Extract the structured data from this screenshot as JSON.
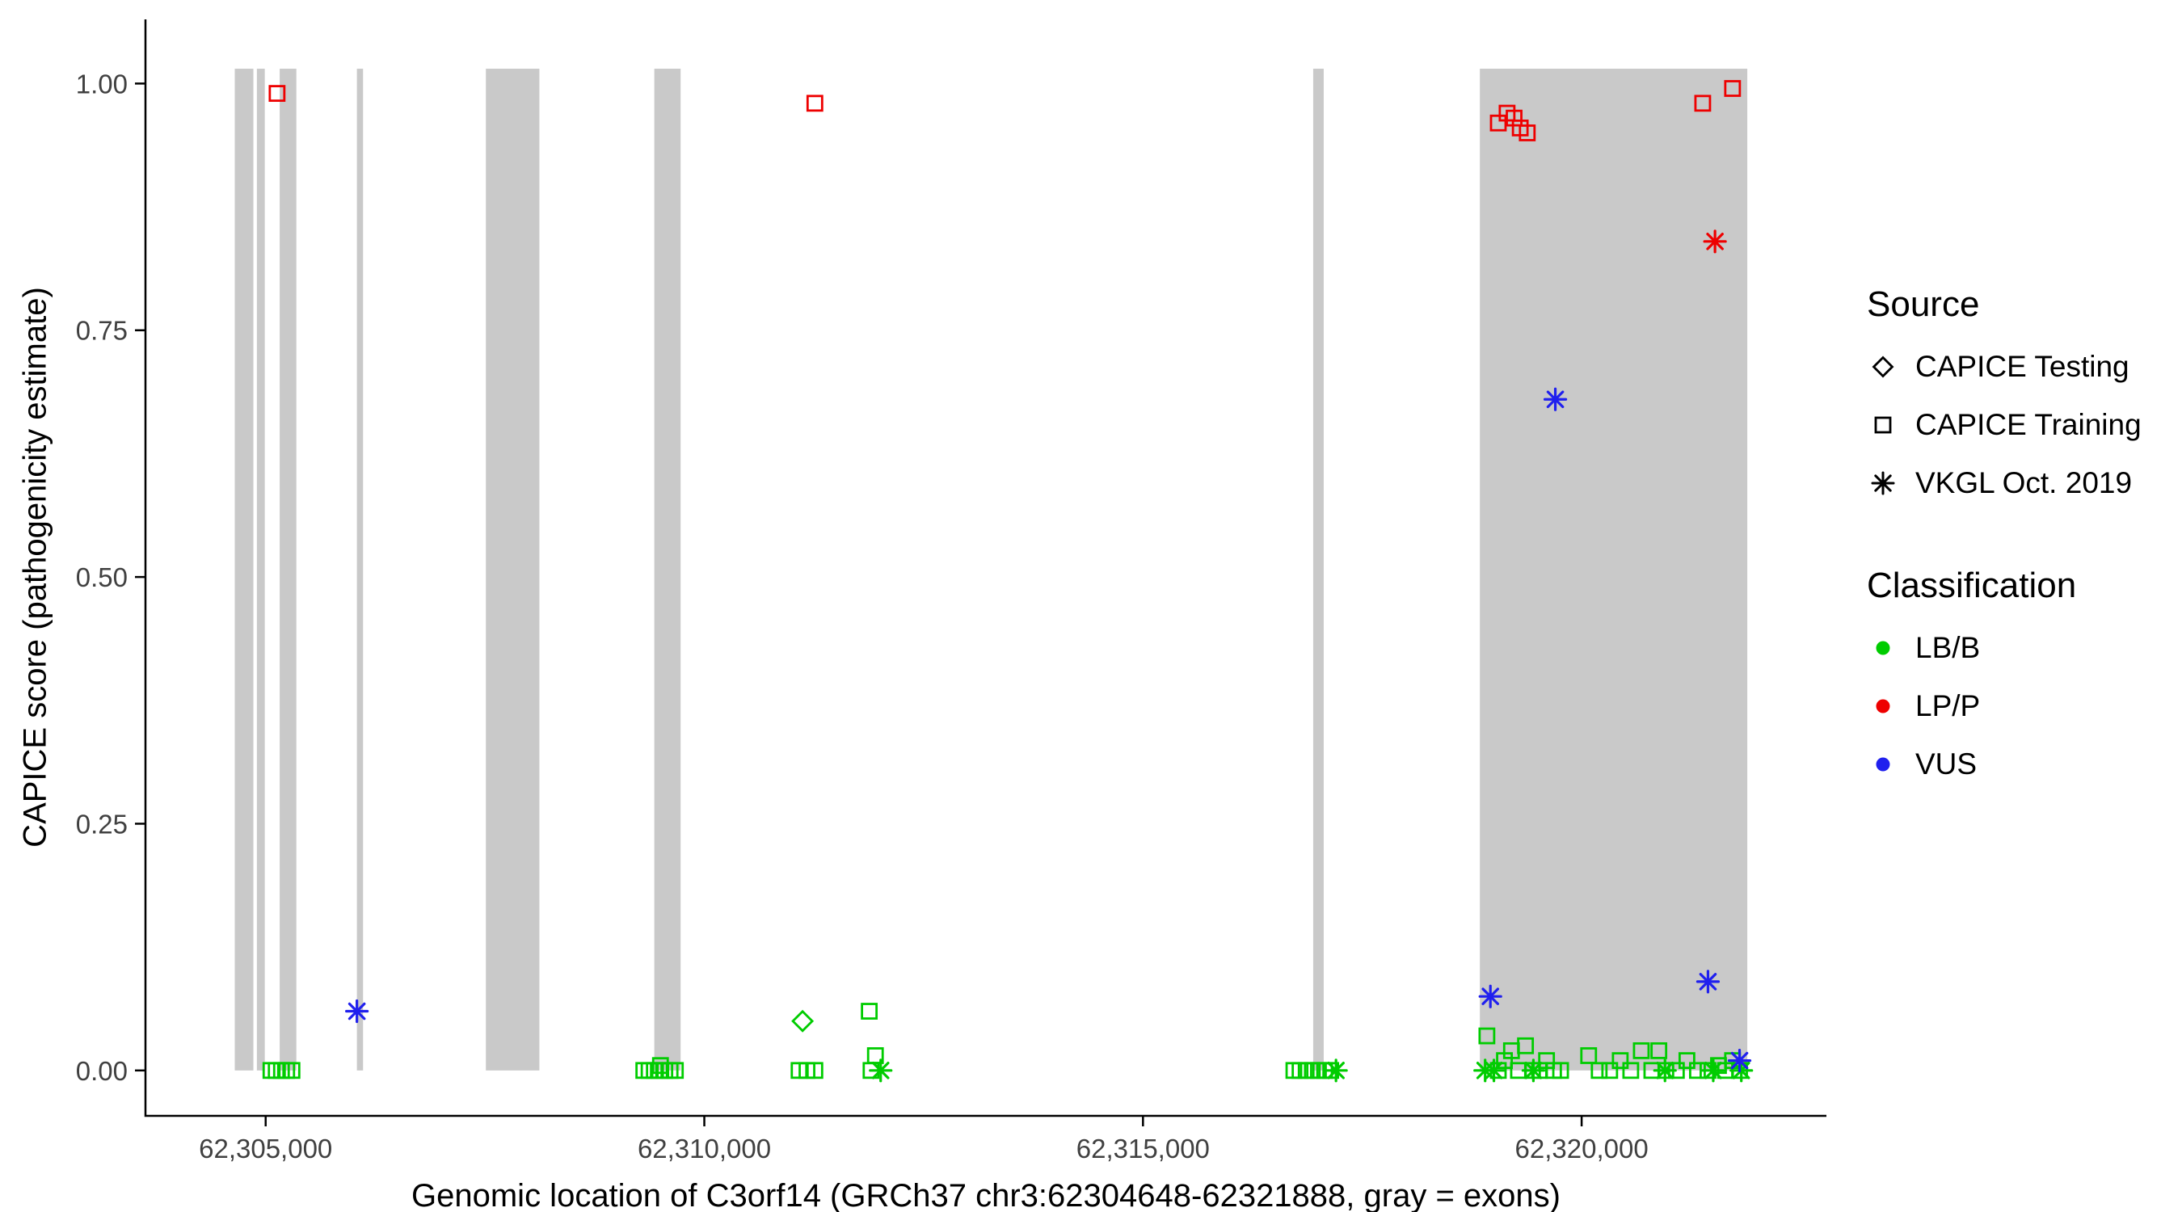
{
  "chart_data": {
    "type": "scatter",
    "title": "",
    "xlabel": "Genomic location of C3orf14 (GRCh37 chr3:62304648-62321888, gray = exons)",
    "ylabel": "CAPICE score (pathogenicity estimate)",
    "xlim": [
      62303630,
      62322790
    ],
    "ylim": [
      -0.046,
      1.065
    ],
    "x_tick_values": [
      62305000,
      62310000,
      62315000,
      62320000
    ],
    "x_tick_labels": [
      "62,305,000",
      "62,310,000",
      "62,315,000",
      "62,320,000"
    ],
    "y_tick_values": [
      0.0,
      0.25,
      0.5,
      0.75,
      1.0
    ],
    "y_tick_labels": [
      "0.00",
      "0.25",
      "0.50",
      "0.75",
      "1.00"
    ],
    "grid": "off",
    "legend_position": "right",
    "exon_color": "#c9c9c9",
    "exon_y_range": [
      0.0,
      1.015
    ],
    "exons": [
      [
        62304648,
        62304860
      ],
      [
        62304900,
        62304990
      ],
      [
        62305160,
        62305350
      ],
      [
        62306040,
        62306110
      ],
      [
        62307510,
        62308120
      ],
      [
        62309430,
        62309730
      ],
      [
        62316940,
        62317060
      ],
      [
        62318840,
        62321888
      ]
    ],
    "colors": {
      "LB/B": "#00CC00",
      "LP/P": "#EE0000",
      "VUS": "#2020EE"
    },
    "shapes": {
      "CAPICE Testing": "diamond",
      "CAPICE Training": "square",
      "VKGL Oct. 2019": "asterisk"
    },
    "series": [
      {
        "classification": "LB/B",
        "source": "CAPICE Testing",
        "points": [
          [
            62311120,
            0.05
          ]
        ]
      },
      {
        "classification": "LB/B",
        "source": "CAPICE Training",
        "points": [
          [
            62305060,
            0.0
          ],
          [
            62305120,
            0.0
          ],
          [
            62305180,
            0.0
          ],
          [
            62305240,
            0.0
          ],
          [
            62305300,
            0.0
          ],
          [
            62309310,
            0.0
          ],
          [
            62309370,
            0.0
          ],
          [
            62309430,
            0.0
          ],
          [
            62309490,
            0.0
          ],
          [
            62309550,
            0.0
          ],
          [
            62309610,
            0.0
          ],
          [
            62309670,
            0.0
          ],
          [
            62309500,
            0.005
          ],
          [
            62311080,
            0.0
          ],
          [
            62311170,
            0.0
          ],
          [
            62311260,
            0.0
          ],
          [
            62311880,
            0.06
          ],
          [
            62311950,
            0.015
          ],
          [
            62311900,
            0.0
          ],
          [
            62316720,
            0.0
          ],
          [
            62316790,
            0.0
          ],
          [
            62316860,
            0.0
          ],
          [
            62316930,
            0.0
          ],
          [
            62317000,
            0.0
          ],
          [
            62317070,
            0.0
          ],
          [
            62317140,
            0.0
          ],
          [
            62318920,
            0.035
          ],
          [
            62319050,
            0.0
          ],
          [
            62319120,
            0.01
          ],
          [
            62319200,
            0.02
          ],
          [
            62319280,
            0.0
          ],
          [
            62319360,
            0.025
          ],
          [
            62319440,
            0.0
          ],
          [
            62319520,
            0.0
          ],
          [
            62319600,
            0.01
          ],
          [
            62319680,
            0.0
          ],
          [
            62319760,
            0.0
          ],
          [
            62320080,
            0.015
          ],
          [
            62320200,
            0.0
          ],
          [
            62320320,
            0.0
          ],
          [
            62320440,
            0.01
          ],
          [
            62320560,
            0.0
          ],
          [
            62320680,
            0.02
          ],
          [
            62320800,
            0.0
          ],
          [
            62320880,
            0.02
          ],
          [
            62320960,
            0.0
          ],
          [
            62321080,
            0.0
          ],
          [
            62321200,
            0.01
          ],
          [
            62321320,
            0.0
          ],
          [
            62321440,
            0.0
          ],
          [
            62321560,
            0.005
          ],
          [
            62321640,
            0.0
          ],
          [
            62321720,
            0.01
          ],
          [
            62321800,
            0.0
          ]
        ]
      },
      {
        "classification": "LB/B",
        "source": "VKGL Oct. 2019",
        "points": [
          [
            62312010,
            0.0
          ],
          [
            62317200,
            0.0
          ],
          [
            62318900,
            0.0
          ],
          [
            62319000,
            0.0
          ],
          [
            62319450,
            0.0
          ],
          [
            62320950,
            0.0
          ],
          [
            62321500,
            0.0
          ],
          [
            62321820,
            0.0
          ]
        ]
      },
      {
        "classification": "LP/P",
        "source": "CAPICE Training",
        "points": [
          [
            62305130,
            0.99
          ],
          [
            62311260,
            0.98
          ],
          [
            62319050,
            0.96
          ],
          [
            62319150,
            0.97
          ],
          [
            62319230,
            0.965
          ],
          [
            62319300,
            0.955
          ],
          [
            62319380,
            0.95
          ],
          [
            62321380,
            0.98
          ],
          [
            62321720,
            0.995
          ]
        ]
      },
      {
        "classification": "LP/P",
        "source": "VKGL Oct. 2019",
        "points": [
          [
            62321520,
            0.84
          ]
        ]
      },
      {
        "classification": "VUS",
        "source": "VKGL Oct. 2019",
        "points": [
          [
            62306040,
            0.06
          ],
          [
            62318960,
            0.075
          ],
          [
            62319700,
            0.68
          ],
          [
            62321440,
            0.09
          ],
          [
            62321800,
            0.01
          ]
        ]
      }
    ]
  },
  "legend": {
    "source": {
      "title": "Source",
      "items": [
        {
          "label": "CAPICE Testing",
          "shape": "diamond"
        },
        {
          "label": "CAPICE Training",
          "shape": "square"
        },
        {
          "label": "VKGL Oct. 2019",
          "shape": "asterisk"
        }
      ]
    },
    "classification": {
      "title": "Classification",
      "items": [
        {
          "label": "LB/B",
          "color": "#00CC00"
        },
        {
          "label": "LP/P",
          "color": "#EE0000"
        },
        {
          "label": "VUS",
          "color": "#2020EE"
        }
      ]
    }
  }
}
